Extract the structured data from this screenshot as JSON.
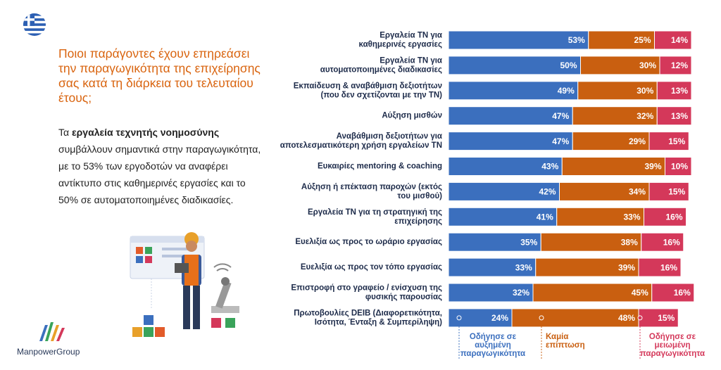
{
  "header": {
    "title": "Ποιοι παράγοντες έχουν επηρεάσει την παραγωγικότητα της επιχείρησης σας κατά τη διάρκεια του τελευταίου έτους;"
  },
  "body": [
    "Τα ",
    "εργαλεία τεχνητής νοημοσύνης",
    " συμβάλλουν σημαντικά στην παραγωγικότητα, με το 53% των εργοδοτών να αναφέρει αντίκτυπο στις καθημερινές εργασίες και το 50% σε αυτοματοποιημένες διαδικασίες."
  ],
  "logo": "ManpowerGroup",
  "chart_data": {
    "type": "stacked-bar",
    "orientation": "horizontal",
    "categories": [
      "Εργαλεία ΤΝ για\nκαθημερινές εργασίες",
      "Εργαλεία ΤΝ για\nαυτοματοποιημένες διαδικασίες",
      "Εκπαίδευση & αναβάθμιση δεξιοτήτων\n(που δεν σχετίζονται με την ΤΝ)",
      "Αύξηση μισθών",
      "Αναβάθμιση δεξιοτήτων για\nαποτελεσματικότερη χρήση εργαλείων ΤΝ",
      "Ευκαιρίες mentoring & coaching",
      "Αύξηση ή επέκταση παροχών (εκτός\nτου μισθού)",
      "Εργαλεία ΤΝ για τη στρατηγική της\nεπιχείρησης",
      "Ευελιξία ως προς το ωράριο εργασίας",
      "Ευελιξία ως προς τον τόπο εργασίας",
      "Επιστροφή στο γραφείο / ενίσχυση της\nφυσικής παρουσίας",
      "Πρωτοβουλίες DEIB (Διαφορετικότητα,\nΙσότητα, Ένταξη & Συμπερίληψη)"
    ],
    "series": [
      {
        "name": "Οδήγησε σε\nαυξημένη\nπαραγωγικότητα",
        "color": "#3b6fbe",
        "values": [
          53,
          50,
          49,
          47,
          47,
          43,
          42,
          41,
          35,
          33,
          32,
          24
        ],
        "value_labels": [
          "53%",
          "50%",
          "49%",
          "47%",
          "47%",
          "43%",
          "42%",
          "41%",
          "35%",
          "33%",
          "32%",
          "24%"
        ]
      },
      {
        "name": "Καμία\nεπίπτωση",
        "color": "#c95f10",
        "values": [
          25,
          30,
          30,
          32,
          29,
          39,
          34,
          33,
          38,
          39,
          45,
          48
        ],
        "value_labels": [
          "25%",
          "30%",
          "30%",
          "32%",
          "29%",
          "39%",
          "34%",
          "33%",
          "38%",
          "39%",
          "45%",
          "48%"
        ]
      },
      {
        "name": "Οδήγησε σε\nμειωμένη\nπαραγωγικότητα",
        "color": "#d4385a",
        "values": [
          14,
          12,
          13,
          13,
          15,
          10,
          15,
          16,
          16,
          16,
          16,
          15
        ],
        "value_labels": [
          "14%",
          "12%",
          "13%",
          "13%",
          "15%",
          "10%",
          "15%",
          "16%",
          "16%",
          "16%",
          "16%",
          "15%"
        ]
      }
    ]
  }
}
